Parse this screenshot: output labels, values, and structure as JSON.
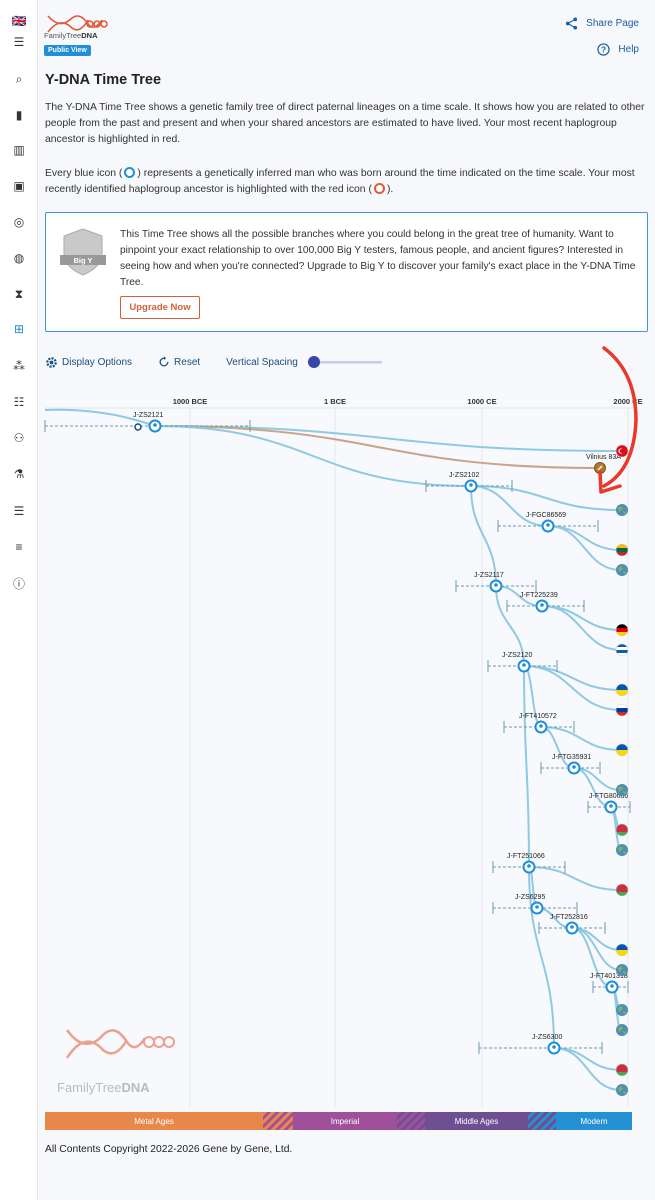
{
  "sidebar": {
    "items": [
      {
        "name": "flag-uk-icon",
        "glyph": "🇬🇧"
      },
      {
        "name": "menu-icon",
        "glyph": "☰"
      },
      {
        "name": "search-icon",
        "glyph": "⌕"
      },
      {
        "name": "book-icon",
        "glyph": "▮"
      },
      {
        "name": "map-icon",
        "glyph": "▥"
      },
      {
        "name": "contact-card-icon",
        "glyph": "▣"
      },
      {
        "name": "compass-icon",
        "glyph": "◎"
      },
      {
        "name": "globe-search-icon",
        "glyph": "◍"
      },
      {
        "name": "hourglass-icon",
        "glyph": "⧗"
      },
      {
        "name": "tree-icon",
        "glyph": "⊞"
      },
      {
        "name": "group-icon",
        "glyph": "⁂"
      },
      {
        "name": "list-icon",
        "glyph": "☷"
      },
      {
        "name": "people-icon",
        "glyph": "⚇"
      },
      {
        "name": "microscope-icon",
        "glyph": "⚗"
      },
      {
        "name": "list-search-icon",
        "glyph": "☰"
      },
      {
        "name": "align-icon",
        "glyph": "≡"
      },
      {
        "name": "info-icon",
        "glyph": "ⓘ"
      }
    ]
  },
  "header": {
    "logo_family": "FamilyTree",
    "logo_dna": "DNA",
    "public_view": "Public View",
    "share_label": "Share Page",
    "help_label": "Help"
  },
  "page": {
    "title": "Y-DNA Time Tree",
    "intro": "The Y-DNA Time Tree shows a genetic family tree of direct paternal lineages on a time scale. It shows how you are related to other people from the past and present and when your shared ancestors are estimated to have lived. Your most recent haplogroup ancestor is highlighted in red.",
    "legend_a": "Every blue icon (",
    "legend_b": ") represents a genetically inferred man who was born around the time indicated on the time scale. Your most recently identified haplogroup ancestor is highlighted with the red icon (",
    "legend_c": ")."
  },
  "promo": {
    "badge": "Big Y",
    "text": "This Time Tree shows all the possible branches where you could belong in the great tree of humanity. Want to pinpoint your exact relationship to over 100,000 Big Y testers, famous people, and ancient figures? Interested in seeing how and when you're connected? Upgrade to Big Y to discover your family's exact place in the Y-DNA Time Tree.",
    "button": "Upgrade Now"
  },
  "toolbar": {
    "display_options": "Display Options",
    "reset": "Reset",
    "vertical_spacing": "Vertical Spacing",
    "spacing_value": 0
  },
  "timeline": {
    "ticks": [
      {
        "label": "1000 BCE",
        "year": -1000
      },
      {
        "label": "1 BCE",
        "year": 0
      },
      {
        "label": "1000 CE",
        "year": 1000
      },
      {
        "label": "2000 CE",
        "year": 2000
      }
    ],
    "eras": [
      {
        "label": "Metal Ages",
        "color": "#e8874a"
      },
      {
        "label": "Imperial",
        "color": "#a0509a"
      },
      {
        "label": "Middle Ages",
        "color": "#6e4f92"
      },
      {
        "label": "Modern",
        "color": "#2591d5"
      }
    ],
    "watermark_family": "FamilyTree",
    "watermark_dna": "DNA"
  },
  "nodes": [
    {
      "id": "J-ZS2121",
      "label": "J-ZS2121"
    },
    {
      "id": "J-ZS2102",
      "label": "J-ZS2102"
    },
    {
      "id": "J-FGC86569",
      "label": "J-FGC86569"
    },
    {
      "id": "J-ZS2117",
      "label": "J-ZS2117"
    },
    {
      "id": "J-FT225239",
      "label": "J-FT225239"
    },
    {
      "id": "J-ZS2120",
      "label": "J-ZS2120"
    },
    {
      "id": "J-FT410572",
      "label": "J-FT410572"
    },
    {
      "id": "J-FTG35931",
      "label": "J-FTG35931"
    },
    {
      "id": "J-FTG80686",
      "label": "J-FTG80686"
    },
    {
      "id": "J-FT251066",
      "label": "J-FT251066"
    },
    {
      "id": "J-ZS6295",
      "label": "J-ZS6295"
    },
    {
      "id": "J-FT252816",
      "label": "J-FT252816"
    },
    {
      "id": "J-FT401318",
      "label": "J-FT401318"
    },
    {
      "id": "J-ZS6300",
      "label": "J-ZS6300"
    },
    {
      "id": "vilnius",
      "label": "Vilnius 83A"
    }
  ],
  "footer": {
    "copyright": "All Contents Copyright 2022-2026 Gene by Gene, Ltd."
  },
  "colors": {
    "accent": "#1f8fd6",
    "node_blue": "#1f8fd6",
    "ancient_brown": "#b07a2a",
    "annotation_red": "#e8392b",
    "branch": "#8fc9e2"
  }
}
